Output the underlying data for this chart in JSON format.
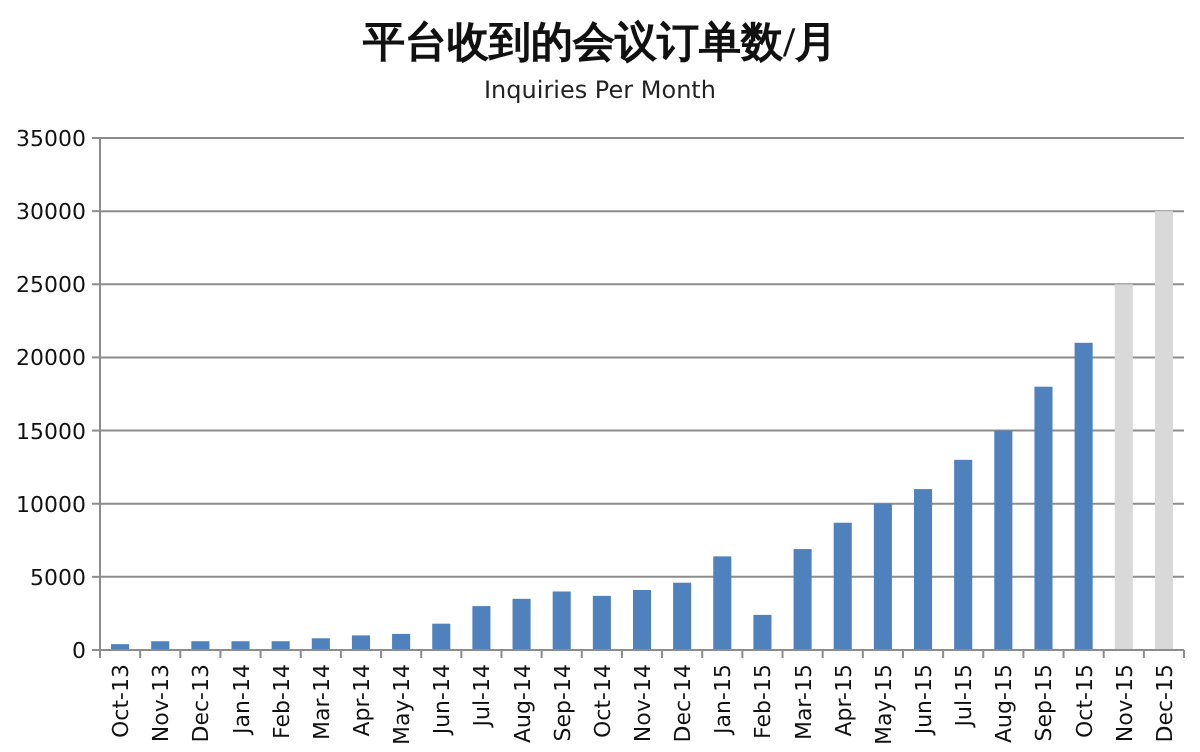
{
  "chart_data": {
    "type": "bar",
    "title": "平台收到的会议订单数/月",
    "subtitle": "Inquiries Per Month",
    "categories": [
      "Oct-13",
      "Nov-13",
      "Dec-13",
      "Jan-14",
      "Feb-14",
      "Mar-14",
      "Apr-14",
      "May-14",
      "Jun-14",
      "Jul-14",
      "Aug-14",
      "Sep-14",
      "Oct-14",
      "Nov-14",
      "Dec-14",
      "Jan-15",
      "Feb-15",
      "Mar-15",
      "Apr-15",
      "May-15",
      "Jun-15",
      "Jul-15",
      "Aug-15",
      "Sep-15",
      "Oct-15",
      "Nov-15",
      "Dec-15"
    ],
    "values": [
      400,
      600,
      600,
      600,
      600,
      800,
      1000,
      1100,
      1800,
      3000,
      3500,
      4000,
      3700,
      4100,
      4600,
      6400,
      2400,
      6900,
      8700,
      10000,
      11000,
      13000,
      15000,
      18000,
      21000,
      25000,
      30000
    ],
    "colors": [
      "#4f81bd",
      "#4f81bd",
      "#4f81bd",
      "#4f81bd",
      "#4f81bd",
      "#4f81bd",
      "#4f81bd",
      "#4f81bd",
      "#4f81bd",
      "#4f81bd",
      "#4f81bd",
      "#4f81bd",
      "#4f81bd",
      "#4f81bd",
      "#4f81bd",
      "#4f81bd",
      "#4f81bd",
      "#4f81bd",
      "#4f81bd",
      "#4f81bd",
      "#4f81bd",
      "#4f81bd",
      "#4f81bd",
      "#4f81bd",
      "#4f81bd",
      "#d9d9d9",
      "#d9d9d9"
    ],
    "ylim": [
      0,
      35000
    ],
    "yticks": [
      0,
      5000,
      10000,
      15000,
      20000,
      25000,
      30000,
      35000
    ],
    "grid": "y"
  }
}
